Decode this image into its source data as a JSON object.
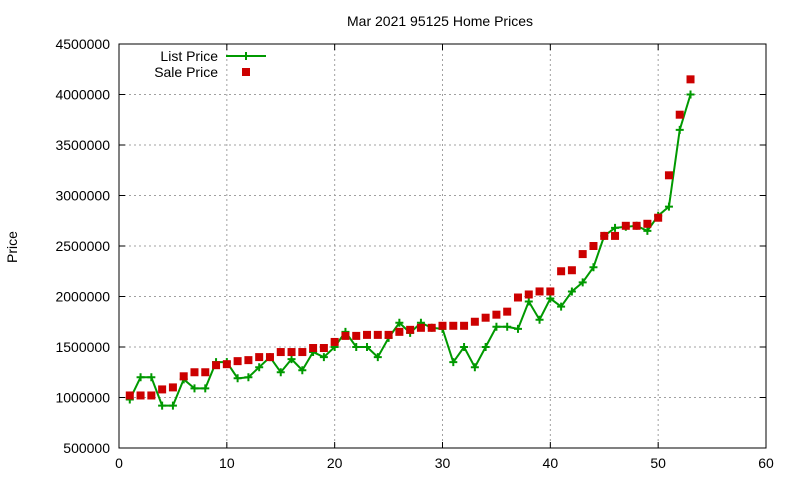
{
  "chart_data": {
    "type": "line",
    "title": "Mar 2021 95125 Home Prices",
    "xlabel": "",
    "ylabel": "Price",
    "xlim": [
      0,
      60
    ],
    "ylim": [
      500000,
      4500000
    ],
    "x_ticks": [
      0,
      10,
      20,
      30,
      40,
      50,
      60
    ],
    "y_ticks": [
      500000,
      1000000,
      1500000,
      2000000,
      2500000,
      3000000,
      3500000,
      4000000,
      4500000
    ],
    "grid": true,
    "legend_position": "top-left",
    "series": [
      {
        "name": "List Price",
        "style": "line-plus",
        "color": "#009900",
        "x": [
          1,
          2,
          3,
          4,
          5,
          6,
          7,
          8,
          9,
          10,
          11,
          12,
          13,
          14,
          15,
          16,
          17,
          18,
          19,
          20,
          21,
          22,
          23,
          24,
          25,
          26,
          27,
          28,
          29,
          30,
          31,
          32,
          33,
          34,
          35,
          36,
          37,
          38,
          39,
          40,
          41,
          42,
          43,
          44,
          45,
          46,
          47,
          48,
          49,
          50,
          51,
          52,
          53
        ],
        "values": [
          980000,
          1200000,
          1200000,
          920000,
          920000,
          1180000,
          1090000,
          1090000,
          1350000,
          1350000,
          1190000,
          1200000,
          1300000,
          1400000,
          1250000,
          1380000,
          1270000,
          1450000,
          1400000,
          1500000,
          1650000,
          1500000,
          1500000,
          1400000,
          1590000,
          1740000,
          1640000,
          1740000,
          1690000,
          1680000,
          1350000,
          1500000,
          1300000,
          1500000,
          1700000,
          1700000,
          1680000,
          1950000,
          1770000,
          1980000,
          1900000,
          2050000,
          2140000,
          2290000,
          2600000,
          2680000,
          2690000,
          2700000,
          2650000,
          2800000,
          2890000,
          3650000,
          4000000
        ]
      },
      {
        "name": "Sale Price",
        "style": "square",
        "color": "#cc0000",
        "x": [
          1,
          2,
          3,
          4,
          5,
          6,
          7,
          8,
          9,
          10,
          11,
          12,
          13,
          14,
          15,
          16,
          17,
          18,
          19,
          20,
          21,
          22,
          23,
          24,
          25,
          26,
          27,
          28,
          29,
          30,
          31,
          32,
          33,
          34,
          35,
          36,
          37,
          38,
          39,
          40,
          41,
          42,
          43,
          44,
          45,
          46,
          47,
          48,
          49,
          50,
          51,
          52,
          53
        ],
        "values": [
          1020000,
          1020000,
          1020000,
          1080000,
          1100000,
          1210000,
          1250000,
          1250000,
          1320000,
          1330000,
          1360000,
          1370000,
          1400000,
          1400000,
          1450000,
          1450000,
          1450000,
          1490000,
          1490000,
          1550000,
          1610000,
          1610000,
          1620000,
          1620000,
          1620000,
          1650000,
          1670000,
          1690000,
          1690000,
          1710000,
          1710000,
          1710000,
          1750000,
          1790000,
          1820000,
          1850000,
          1990000,
          2020000,
          2050000,
          2050000,
          2250000,
          2260000,
          2420000,
          2500000,
          2600000,
          2600000,
          2700000,
          2700000,
          2720000,
          2780000,
          3200000,
          3800000,
          4150000
        ]
      }
    ]
  }
}
